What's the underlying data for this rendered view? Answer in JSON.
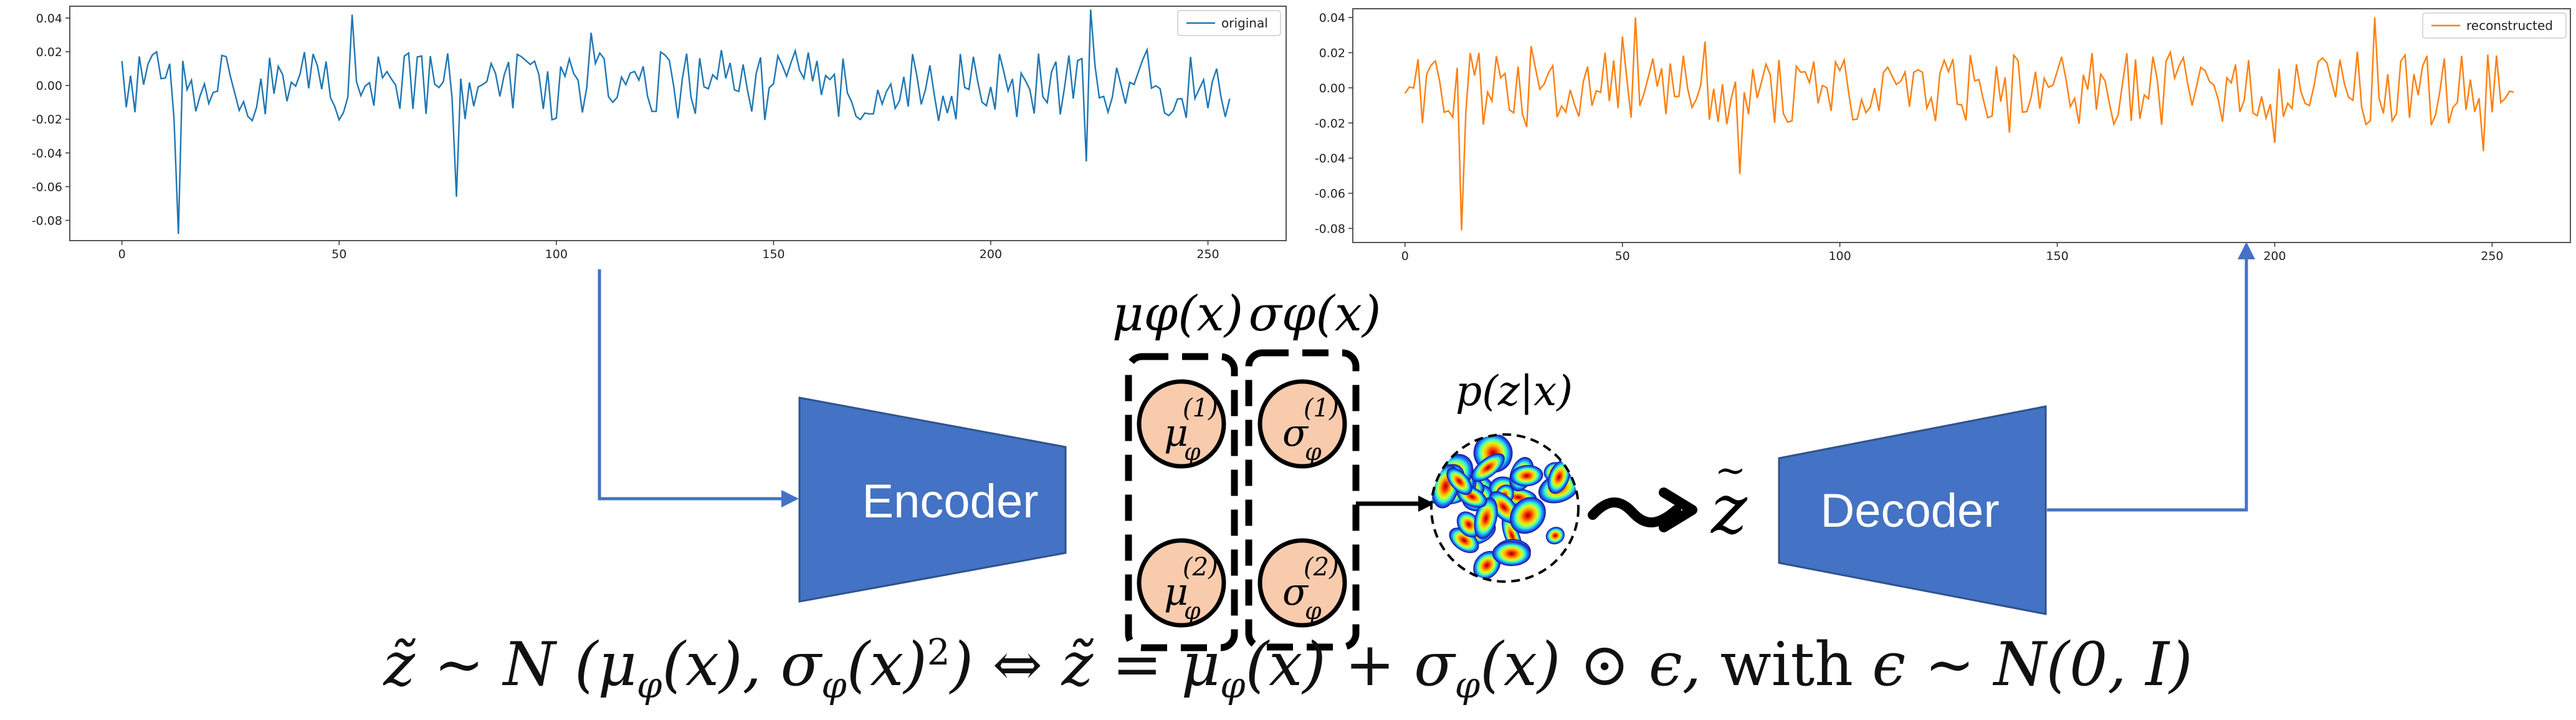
{
  "colors": {
    "original": "#1f77b4",
    "reconstructed": "#ff7f0e",
    "block": "#4472c4",
    "node": "#f8cbad",
    "arrow": "#4472c4"
  },
  "plots": {
    "left": {
      "legend": "original",
      "xticks": [
        "0",
        "50",
        "100",
        "150",
        "200",
        "250"
      ],
      "yticks": [
        "0.04",
        "0.02",
        "0.00",
        "-0.02",
        "-0.04",
        "-0.06",
        "-0.08"
      ]
    },
    "right": {
      "legend": "reconstructed",
      "xticks": [
        "0",
        "50",
        "100",
        "150",
        "200",
        "250"
      ],
      "yticks": [
        "0.04",
        "0.02",
        "0.00",
        "-0.02",
        "-0.04",
        "-0.06",
        "-0.08"
      ]
    }
  },
  "chart_data": [
    {
      "type": "line",
      "series": [
        {
          "name": "original",
          "x_range": [
            0,
            255
          ]
        }
      ],
      "xlim": [
        -12,
        268
      ],
      "ylim": [
        -0.092,
        0.047
      ],
      "spikes": [
        {
          "x": 13,
          "y": -0.088
        },
        {
          "x": 53,
          "y": 0.042
        },
        {
          "x": 77,
          "y": -0.066
        },
        {
          "x": 223,
          "y": 0.045
        },
        {
          "x": 222,
          "y": -0.045
        }
      ],
      "grid": false,
      "legend_position": "upper right"
    },
    {
      "type": "line",
      "series": [
        {
          "name": "reconstructed",
          "x_range": [
            0,
            255
          ]
        }
      ],
      "xlim": [
        -12,
        268
      ],
      "ylim": [
        -0.088,
        0.045
      ],
      "spikes": [
        {
          "x": 13,
          "y": -0.081
        },
        {
          "x": 53,
          "y": 0.04
        },
        {
          "x": 77,
          "y": -0.049
        },
        {
          "x": 223,
          "y": 0.04
        },
        {
          "x": 248,
          "y": -0.036
        }
      ],
      "grid": false,
      "legend_position": "upper right"
    }
  ],
  "diagram": {
    "encoder_label": "Encoder",
    "decoder_label": "Decoder",
    "mu_header": "μφ(x)",
    "sigma_header": "σφ(x)",
    "prior_label": "p(z|x)",
    "mu": "μ",
    "sigma": "σ",
    "phi": "φ",
    "sup1": "(1)",
    "sup2": "(2)",
    "tilde_z": "z",
    "tilde": "~"
  },
  "formula": {
    "part1": "z̃ ∼ N (μ",
    "part2": "(x), σ",
    "part3": "(x)",
    "part4": ") ⇔ z̃ = μ",
    "part5": "(x) + σ",
    "part6": "(x) ⊙ ϵ, ",
    "with": "with",
    "part7": " ϵ ∼ N(0, I)",
    "sub": "φ",
    "sq": "2"
  }
}
